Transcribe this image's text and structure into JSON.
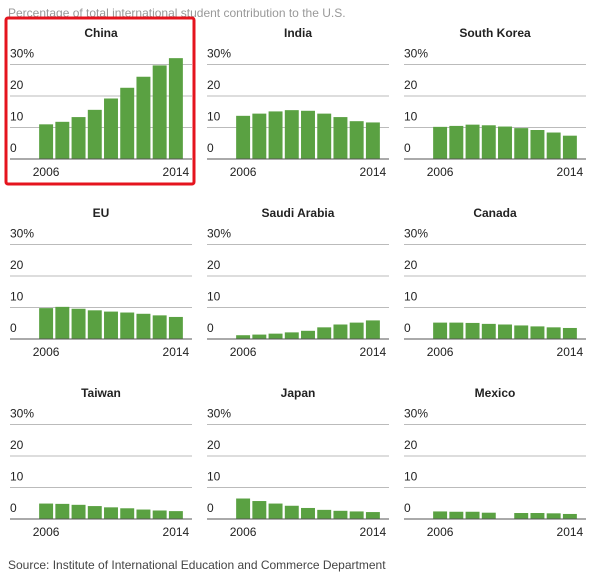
{
  "title": "Percentage of total international student contribution to the U.S.",
  "source": "Source: Institute of International Education and Commerce Department",
  "chart_data": [
    {
      "type": "bar",
      "title": "China",
      "highlight": true,
      "color": "#5aa142",
      "categories": [
        "2006",
        null,
        null,
        null,
        null,
        null,
        null,
        null,
        "2014"
      ],
      "values": [
        11,
        11.8,
        13.3,
        15.6,
        19.2,
        22.6,
        26.1,
        29.7,
        32
      ],
      "ylim": [
        0,
        33
      ],
      "yticks": [
        0,
        10,
        20,
        {
          "value": 30,
          "label": "30%"
        }
      ],
      "grid": true
    },
    {
      "type": "bar",
      "title": "India",
      "color": "#5aa142",
      "categories": [
        "2006",
        null,
        null,
        null,
        null,
        null,
        null,
        null,
        "2014"
      ],
      "values": [
        13.7,
        14.4,
        15.1,
        15.5,
        15.3,
        14.4,
        13.3,
        12,
        11.6
      ],
      "ylim": [
        0,
        33
      ],
      "yticks": [
        0,
        10,
        20,
        {
          "value": 30,
          "label": "30%"
        }
      ],
      "grid": true
    },
    {
      "type": "bar",
      "title": "South Korea",
      "color": "#5aa142",
      "categories": [
        "2006",
        null,
        null,
        null,
        null,
        null,
        null,
        null,
        "2014"
      ],
      "values": [
        10.2,
        10.5,
        10.9,
        10.7,
        10.3,
        9.8,
        9.2,
        8.4,
        7.4
      ],
      "ylim": [
        0,
        33
      ],
      "yticks": [
        0,
        10,
        20,
        {
          "value": 30,
          "label": "30%"
        }
      ],
      "grid": true
    },
    {
      "type": "bar",
      "title": "EU",
      "color": "#5aa142",
      "categories": [
        "2006",
        null,
        null,
        null,
        null,
        null,
        null,
        null,
        "2014"
      ],
      "values": [
        9.8,
        10.2,
        9.6,
        9.1,
        8.7,
        8.4,
        8,
        7.5,
        7
      ],
      "ylim": [
        0,
        33
      ],
      "yticks": [
        0,
        10,
        20,
        {
          "value": 30,
          "label": "30%"
        }
      ],
      "grid": true
    },
    {
      "type": "bar",
      "title": "Saudi Arabia",
      "color": "#5aa142",
      "categories": [
        "2006",
        null,
        null,
        null,
        null,
        null,
        null,
        null,
        "2014"
      ],
      "values": [
        1.2,
        1.4,
        1.7,
        2.1,
        2.6,
        3.7,
        4.6,
        5.2,
        5.9
      ],
      "ylim": [
        0,
        33
      ],
      "yticks": [
        0,
        10,
        20,
        {
          "value": 30,
          "label": "30%"
        }
      ],
      "grid": true
    },
    {
      "type": "bar",
      "title": "Canada",
      "color": "#5aa142",
      "categories": [
        "2006",
        null,
        null,
        null,
        null,
        null,
        null,
        null,
        "2014"
      ],
      "values": [
        5.2,
        5.2,
        5.1,
        4.8,
        4.6,
        4.3,
        4,
        3.7,
        3.5
      ],
      "ylim": [
        0,
        33
      ],
      "yticks": [
        0,
        10,
        20,
        {
          "value": 30,
          "label": "30%"
        }
      ],
      "grid": true
    },
    {
      "type": "bar",
      "title": "Taiwan",
      "color": "#5aa142",
      "categories": [
        "2006",
        null,
        null,
        null,
        null,
        null,
        null,
        null,
        "2014"
      ],
      "values": [
        4.9,
        4.8,
        4.5,
        4.1,
        3.7,
        3.4,
        3,
        2.7,
        2.5
      ],
      "ylim": [
        0,
        33
      ],
      "yticks": [
        0,
        10,
        20,
        {
          "value": 30,
          "label": "30%"
        }
      ],
      "grid": true
    },
    {
      "type": "bar",
      "title": "Japan",
      "color": "#5aa142",
      "categories": [
        "2006",
        null,
        null,
        null,
        null,
        null,
        null,
        null,
        "2014"
      ],
      "values": [
        6.5,
        5.7,
        4.9,
        4.2,
        3.5,
        2.9,
        2.6,
        2.4,
        2.2
      ],
      "ylim": [
        0,
        33
      ],
      "yticks": [
        0,
        10,
        20,
        {
          "value": 30,
          "label": "30%"
        }
      ],
      "grid": true
    },
    {
      "type": "bar",
      "title": "Mexico",
      "color": "#5aa142",
      "categories": [
        "2006",
        null,
        null,
        null,
        null,
        null,
        null,
        null,
        "2014"
      ],
      "values": [
        2.4,
        2.3,
        2.3,
        2,
        null,
        1.9,
        1.9,
        1.8,
        1.6
      ],
      "ylim": [
        0,
        33
      ],
      "yticks": [
        0,
        10,
        20,
        {
          "value": 30,
          "label": "30%"
        }
      ],
      "grid": true
    }
  ]
}
